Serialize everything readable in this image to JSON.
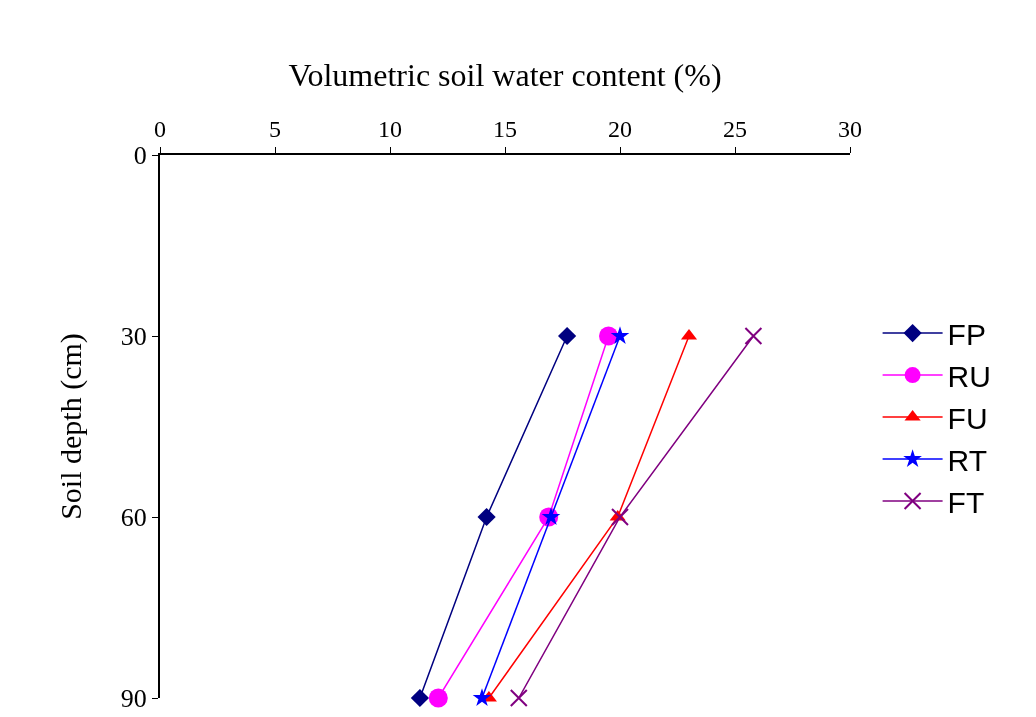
{
  "chart_data": {
    "type": "line",
    "xlabel": "Volumetric soil water content (%)",
    "ylabel": "Soil depth (cm)",
    "xlim": [
      0,
      30
    ],
    "xticks": [
      0,
      5,
      10,
      15,
      20,
      25,
      30
    ],
    "ylim": [
      90,
      0
    ],
    "yticks": [
      0,
      30,
      60,
      90
    ],
    "grid": false,
    "legend": "right",
    "line_style": "solid",
    "series": [
      {
        "name": "FP",
        "color": "#000080",
        "marker": "diamond",
        "x": [
          17.7,
          14.2,
          11.3
        ],
        "values": [
          30,
          60,
          90
        ]
      },
      {
        "name": "RU",
        "color": "#ff00ff",
        "marker": "circle",
        "x": [
          19.5,
          16.9,
          12.1
        ],
        "values": [
          30,
          60,
          90
        ]
      },
      {
        "name": "FU",
        "color": "#ff0000",
        "marker": "triangle",
        "x": [
          23.0,
          19.9,
          14.3
        ],
        "values": [
          30,
          60,
          90
        ]
      },
      {
        "name": "RT",
        "color": "#0000ff",
        "marker": "star",
        "x": [
          20.0,
          17.0,
          14.0
        ],
        "values": [
          30,
          60,
          90
        ]
      },
      {
        "name": "FT",
        "color": "#800080",
        "marker": "cross",
        "x": [
          25.8,
          20.0,
          15.6
        ],
        "values": [
          30,
          60,
          90
        ]
      }
    ]
  }
}
